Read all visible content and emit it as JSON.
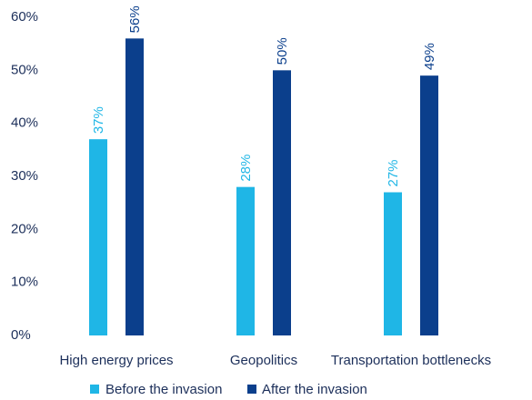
{
  "chart_data": {
    "type": "bar",
    "categories": [
      "High energy prices",
      "Geopolitics",
      "Transportation bottlenecks"
    ],
    "series": [
      {
        "name": "Before the invasion",
        "values": [
          37,
          28,
          27
        ],
        "labels": [
          "37%",
          "28%",
          "27%"
        ],
        "color": "#1fb6e6"
      },
      {
        "name": "After the invasion",
        "values": [
          56,
          50,
          49
        ],
        "labels": [
          "56%",
          "50%",
          "49%"
        ],
        "color": "#0b3f8c"
      }
    ],
    "y_ticks": [
      "0%",
      "10%",
      "20%",
      "30%",
      "40%",
      "50%",
      "60%"
    ],
    "ylim": [
      0,
      60
    ],
    "grid": false,
    "legend_position": "bottom"
  }
}
